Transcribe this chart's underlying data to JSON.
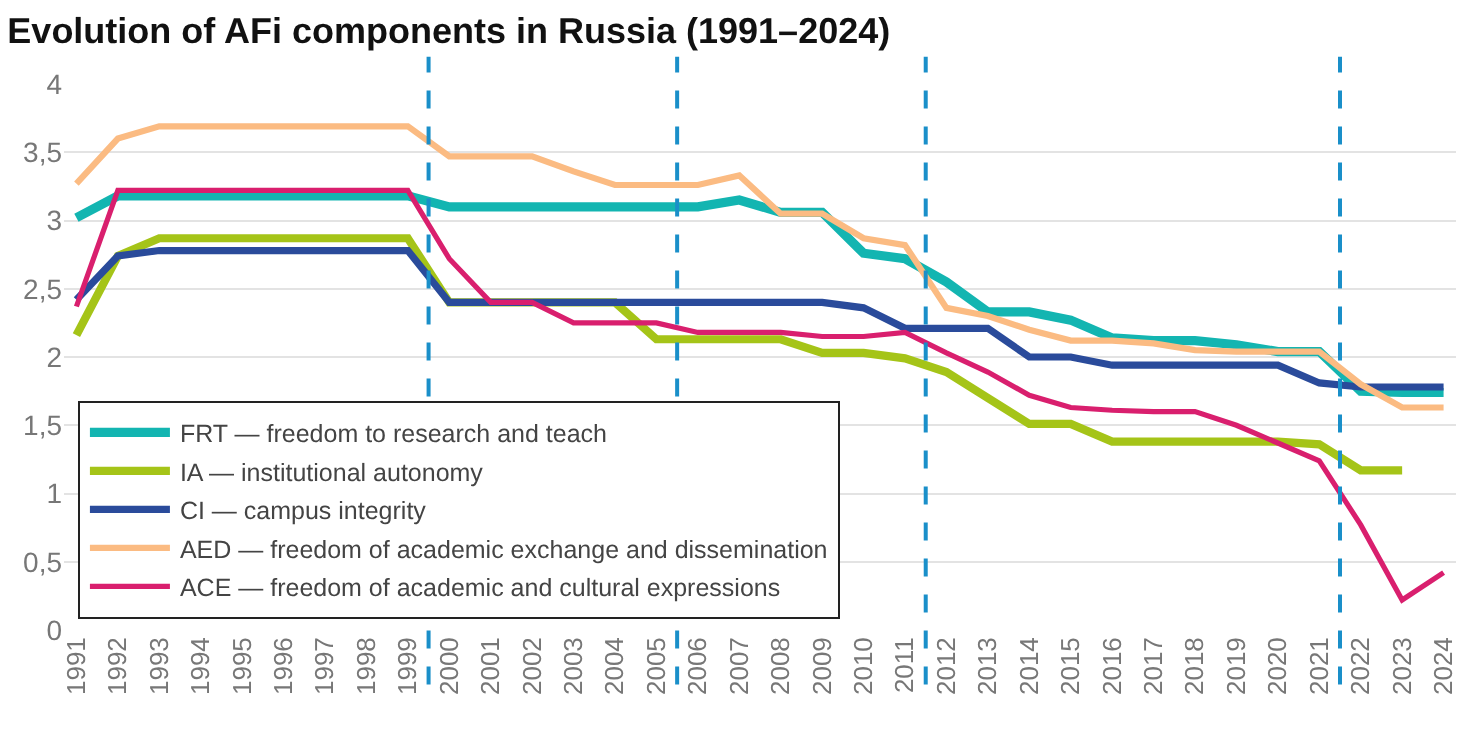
{
  "chart_data": {
    "type": "line",
    "title": "Evolution of AFi components in Russia (1991–2024)",
    "x": [
      1991,
      1992,
      1993,
      1994,
      1995,
      1996,
      1997,
      1998,
      1999,
      2000,
      2001,
      2002,
      2003,
      2004,
      2005,
      2006,
      2007,
      2008,
      2009,
      2010,
      2011,
      2012,
      2013,
      2014,
      2015,
      2016,
      2017,
      2018,
      2019,
      2020,
      2021,
      2022,
      2023,
      2024
    ],
    "series": [
      {
        "name": "FRT — freedom to research and teach",
        "color": "#13b5b1",
        "values": [
          3.02,
          3.18,
          3.18,
          3.18,
          3.18,
          3.18,
          3.18,
          3.18,
          3.18,
          3.1,
          3.1,
          3.1,
          3.1,
          3.1,
          3.1,
          3.1,
          3.15,
          3.06,
          3.06,
          2.76,
          2.72,
          2.55,
          2.33,
          2.33,
          2.27,
          2.14,
          2.12,
          2.12,
          2.09,
          2.04,
          2.04,
          1.75,
          1.74,
          1.74
        ]
      },
      {
        "name": "IA — institutional autonomy",
        "color": "#a5c418",
        "values": [
          2.16,
          2.74,
          2.87,
          2.87,
          2.87,
          2.87,
          2.87,
          2.87,
          2.87,
          2.4,
          2.4,
          2.4,
          2.4,
          2.4,
          2.13,
          2.13,
          2.13,
          2.13,
          2.03,
          2.03,
          1.99,
          1.89,
          1.7,
          1.51,
          1.51,
          1.38,
          1.38,
          1.38,
          1.38,
          1.38,
          1.36,
          1.17,
          1.17,
          null
        ]
      },
      {
        "name": "CI — campus integrity",
        "color": "#2a4b9b",
        "values": [
          2.42,
          2.74,
          2.78,
          2.78,
          2.78,
          2.78,
          2.78,
          2.78,
          2.78,
          2.4,
          2.4,
          2.4,
          2.4,
          2.4,
          2.4,
          2.4,
          2.4,
          2.4,
          2.4,
          2.36,
          2.21,
          2.21,
          2.21,
          2.0,
          2.0,
          1.94,
          1.94,
          1.94,
          1.94,
          1.94,
          1.81,
          1.78,
          1.78,
          1.78
        ]
      },
      {
        "name": "AED — freedom of academic exchange and dissemination",
        "color": "#fbbb82",
        "values": [
          3.27,
          3.6,
          3.69,
          3.69,
          3.69,
          3.69,
          3.69,
          3.69,
          3.69,
          3.47,
          3.47,
          3.47,
          3.36,
          3.26,
          3.26,
          3.26,
          3.33,
          3.05,
          3.05,
          2.87,
          2.82,
          2.36,
          2.3,
          2.2,
          2.12,
          2.12,
          2.1,
          2.05,
          2.04,
          2.04,
          2.04,
          1.8,
          1.63,
          1.63
        ]
      },
      {
        "name": "ACE — freedom of academic and cultural expressions",
        "color": "#d91f6e",
        "values": [
          2.37,
          3.22,
          3.22,
          3.22,
          3.22,
          3.22,
          3.22,
          3.22,
          3.22,
          2.72,
          2.4,
          2.4,
          2.25,
          2.25,
          2.25,
          2.18,
          2.18,
          2.18,
          2.15,
          2.15,
          2.18,
          2.03,
          1.89,
          1.72,
          1.63,
          1.61,
          1.6,
          1.6,
          1.5,
          1.37,
          1.24,
          0.77,
          0.22,
          0.42
        ]
      }
    ],
    "xlim": [
      1990.7,
      2024.3
    ],
    "xticks": [
      1991,
      1992,
      1993,
      1994,
      1995,
      1996,
      1997,
      1998,
      1999,
      2000,
      2001,
      2002,
      2003,
      2004,
      2005,
      2006,
      2007,
      2008,
      2009,
      2010,
      2011,
      2012,
      2013,
      2014,
      2015,
      2016,
      2017,
      2018,
      2019,
      2020,
      2021,
      2022,
      2023,
      2024
    ],
    "ylim": [
      0,
      4
    ],
    "yticks": [
      0,
      {
        "value": 0.5,
        "label": "0,5"
      },
      1,
      {
        "value": 1.5,
        "label": "1,5"
      },
      2,
      {
        "value": 2.5,
        "label": "2,5"
      },
      3,
      {
        "value": 3.5,
        "label": "3,5"
      },
      4
    ],
    "ref_lines": [
      {
        "axis": "x",
        "value": 1999.5,
        "color": "#1a8fc9",
        "line_style": "dashed"
      },
      {
        "axis": "x",
        "value": 2005.5,
        "color": "#1a8fc9",
        "line_style": "dashed"
      },
      {
        "axis": "x",
        "value": 2011.5,
        "color": "#1a8fc9",
        "line_style": "dashed"
      },
      {
        "axis": "x",
        "value": 2021.5,
        "color": "#1a8fc9",
        "line_style": "dashed"
      }
    ],
    "grid": "y",
    "legend": "bottom left",
    "marker": "none",
    "line_style": "solid"
  }
}
